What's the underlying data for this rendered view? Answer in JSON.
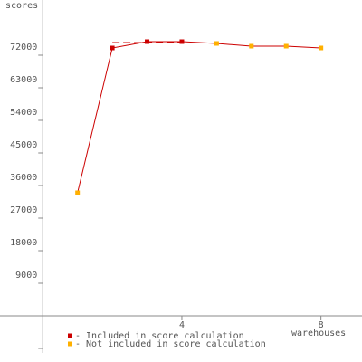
{
  "chart_data": {
    "type": "line",
    "x_label": "warehouses",
    "y_label": "scores",
    "x": [
      1,
      2,
      3,
      4,
      5,
      6,
      7,
      8
    ],
    "values": [
      34000,
      74000,
      75750,
      75750,
      75250,
      74500,
      74500,
      74000
    ],
    "line_color": "#cc0000",
    "point_colors": [
      "#ffb000",
      "#cc0000",
      "#cc0000",
      "#cc0000",
      "#ffb000",
      "#ffb000",
      "#ffb000",
      "#ffb000"
    ],
    "score_line": {
      "value": 75500,
      "x": [
        2,
        4
      ],
      "color": "#cc0000"
    },
    "xlim": [
      -1.23,
      9.18
    ],
    "ylim": [
      -10250,
      87250
    ],
    "xticks": [
      4,
      8
    ],
    "yticks": [
      9000,
      18000,
      27000,
      36000,
      45000,
      54000,
      63000,
      72000
    ],
    "minor_yticks": [
      -9000
    ],
    "legend": [
      {
        "label": "- Included in score calculation",
        "color": "#cc0000"
      },
      {
        "label": "- Not included in score calculation",
        "color": "#ffb000"
      }
    ]
  }
}
